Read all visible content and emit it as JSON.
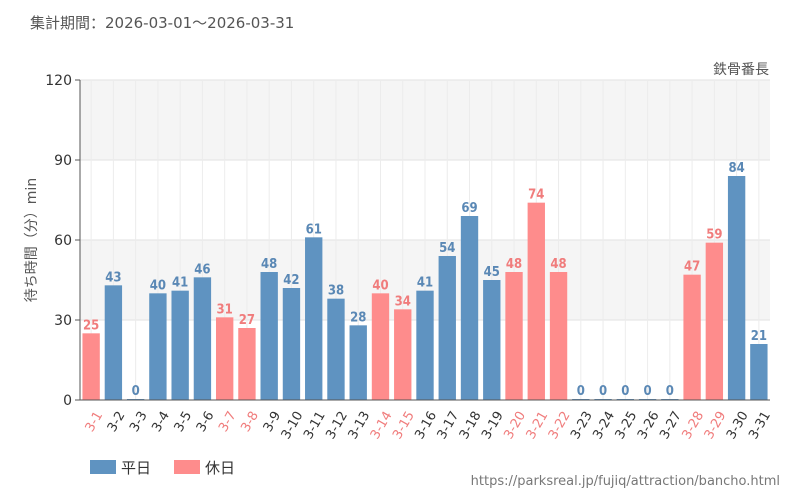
{
  "header": {
    "period_label": "集計期間：2026-03-01～2026-03-31"
  },
  "source_url": "https://parksreal.jp/fujiq/attraction/bancho.html",
  "colors": {
    "weekday": "#5f93c1",
    "holiday": "#fe8c8c",
    "weekday_text": "#5a88b5",
    "holiday_text": "#f07c7c"
  },
  "chart_data": {
    "type": "bar",
    "title": "",
    "series_label": "鉄骨番長",
    "ylabel": "待ち時間（分）min",
    "xlabel": "",
    "ylim": [
      0,
      120
    ],
    "yticks": [
      0,
      30,
      60,
      90,
      120
    ],
    "grid": true,
    "legend_position": "bottom-left",
    "legend": [
      {
        "key": "weekday",
        "label": "平日"
      },
      {
        "key": "holiday",
        "label": "休日"
      }
    ],
    "categories": [
      "3-1",
      "3-2",
      "3-3",
      "3-4",
      "3-5",
      "3-6",
      "3-7",
      "3-8",
      "3-9",
      "3-10",
      "3-11",
      "3-12",
      "3-13",
      "3-14",
      "3-15",
      "3-16",
      "3-17",
      "3-18",
      "3-19",
      "3-20",
      "3-21",
      "3-22",
      "3-23",
      "3-24",
      "3-25",
      "3-26",
      "3-27",
      "3-28",
      "3-29",
      "3-30",
      "3-31"
    ],
    "values": [
      25,
      43,
      0,
      40,
      41,
      46,
      31,
      27,
      48,
      42,
      61,
      38,
      28,
      40,
      34,
      41,
      54,
      69,
      45,
      48,
      74,
      48,
      0,
      0,
      0,
      0,
      0,
      47,
      59,
      84,
      21
    ],
    "day_type": [
      "holiday",
      "weekday",
      "weekday",
      "weekday",
      "weekday",
      "weekday",
      "holiday",
      "holiday",
      "weekday",
      "weekday",
      "weekday",
      "weekday",
      "weekday",
      "holiday",
      "holiday",
      "weekday",
      "weekday",
      "weekday",
      "weekday",
      "holiday",
      "holiday",
      "holiday",
      "weekday",
      "weekday",
      "weekday",
      "weekday",
      "weekday",
      "holiday",
      "holiday",
      "weekday",
      "weekday"
    ]
  }
}
